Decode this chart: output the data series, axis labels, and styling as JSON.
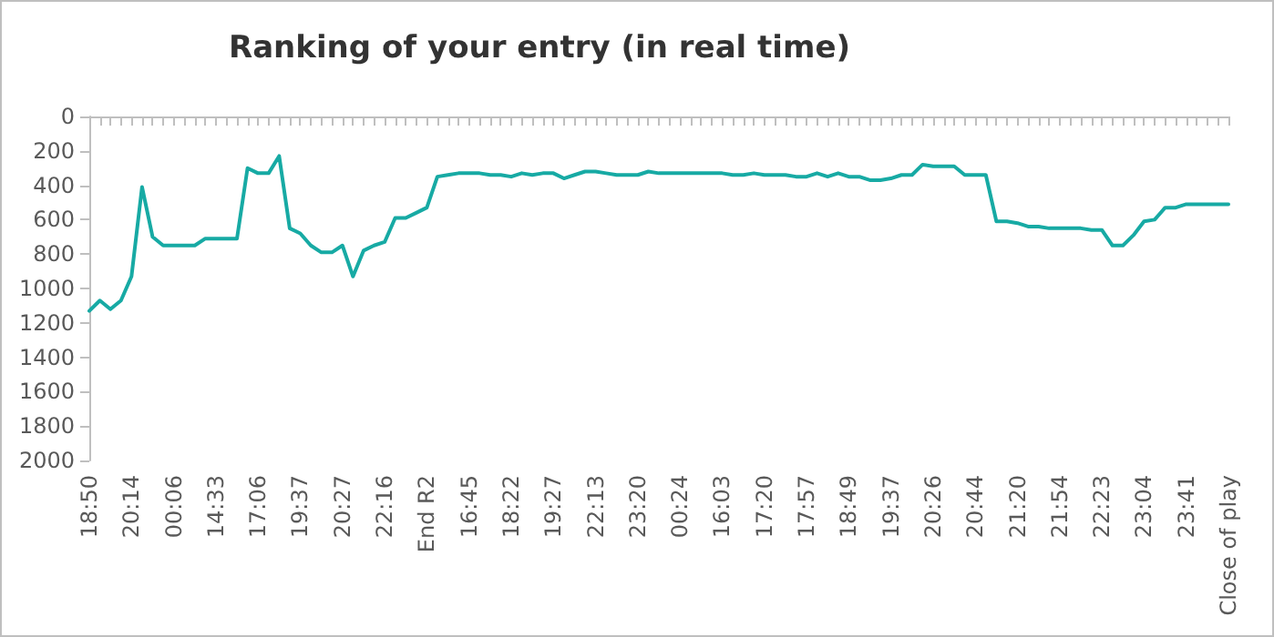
{
  "chart_data": {
    "type": "line",
    "title": "Ranking of your entry (in real time)",
    "categories": [
      "18:50",
      null,
      null,
      null,
      "20:14",
      null,
      null,
      null,
      "00:06",
      null,
      null,
      null,
      "14:33",
      null,
      null,
      null,
      "17:06",
      null,
      null,
      null,
      "19:37",
      null,
      null,
      null,
      "20:27",
      null,
      null,
      null,
      "22:16",
      null,
      null,
      null,
      "End R2",
      null,
      null,
      null,
      "16:45",
      null,
      null,
      null,
      "18:22",
      null,
      null,
      null,
      "19:27",
      null,
      null,
      null,
      "22:13",
      null,
      null,
      null,
      "23:20",
      null,
      null,
      null,
      "00:24",
      null,
      null,
      null,
      "16:03",
      null,
      null,
      null,
      "17:20",
      null,
      null,
      null,
      "17:57",
      null,
      null,
      null,
      "18:49",
      null,
      null,
      null,
      "19:37",
      null,
      null,
      null,
      "20:26",
      null,
      null,
      null,
      "20:44",
      null,
      null,
      null,
      "21:20",
      null,
      null,
      null,
      "21:54",
      null,
      null,
      null,
      "22:23",
      null,
      null,
      null,
      "23:04",
      null,
      null,
      null,
      "23:41",
      null,
      null,
      null,
      "Close of play"
    ],
    "series": [
      {
        "color": "#17aaa4",
        "values": [
          1130,
          1070,
          1120,
          1070,
          930,
          410,
          700,
          750,
          750,
          750,
          750,
          710,
          710,
          710,
          710,
          300,
          330,
          330,
          230,
          650,
          680,
          750,
          790,
          790,
          750,
          930,
          780,
          750,
          730,
          590,
          590,
          560,
          530,
          350,
          340,
          330,
          330,
          330,
          340,
          340,
          350,
          330,
          340,
          330,
          330,
          360,
          340,
          320,
          320,
          330,
          340,
          340,
          340,
          320,
          330,
          330,
          330,
          330,
          330,
          330,
          330,
          340,
          340,
          330,
          340,
          340,
          340,
          350,
          350,
          330,
          350,
          330,
          350,
          350,
          370,
          370,
          360,
          340,
          340,
          280,
          290,
          290,
          290,
          340,
          340,
          340,
          610,
          610,
          620,
          640,
          640,
          650,
          650,
          650,
          650,
          660,
          660,
          750,
          750,
          690,
          610,
          600,
          530,
          530,
          510,
          510,
          510,
          510,
          510
        ]
      }
    ],
    "ylim": [
      2000,
      0
    ],
    "yticks": [
      0,
      200,
      400,
      600,
      800,
      1000,
      1200,
      1400,
      1600,
      1800,
      2000
    ],
    "grid": false,
    "marker": "none",
    "line_style": "solid"
  }
}
